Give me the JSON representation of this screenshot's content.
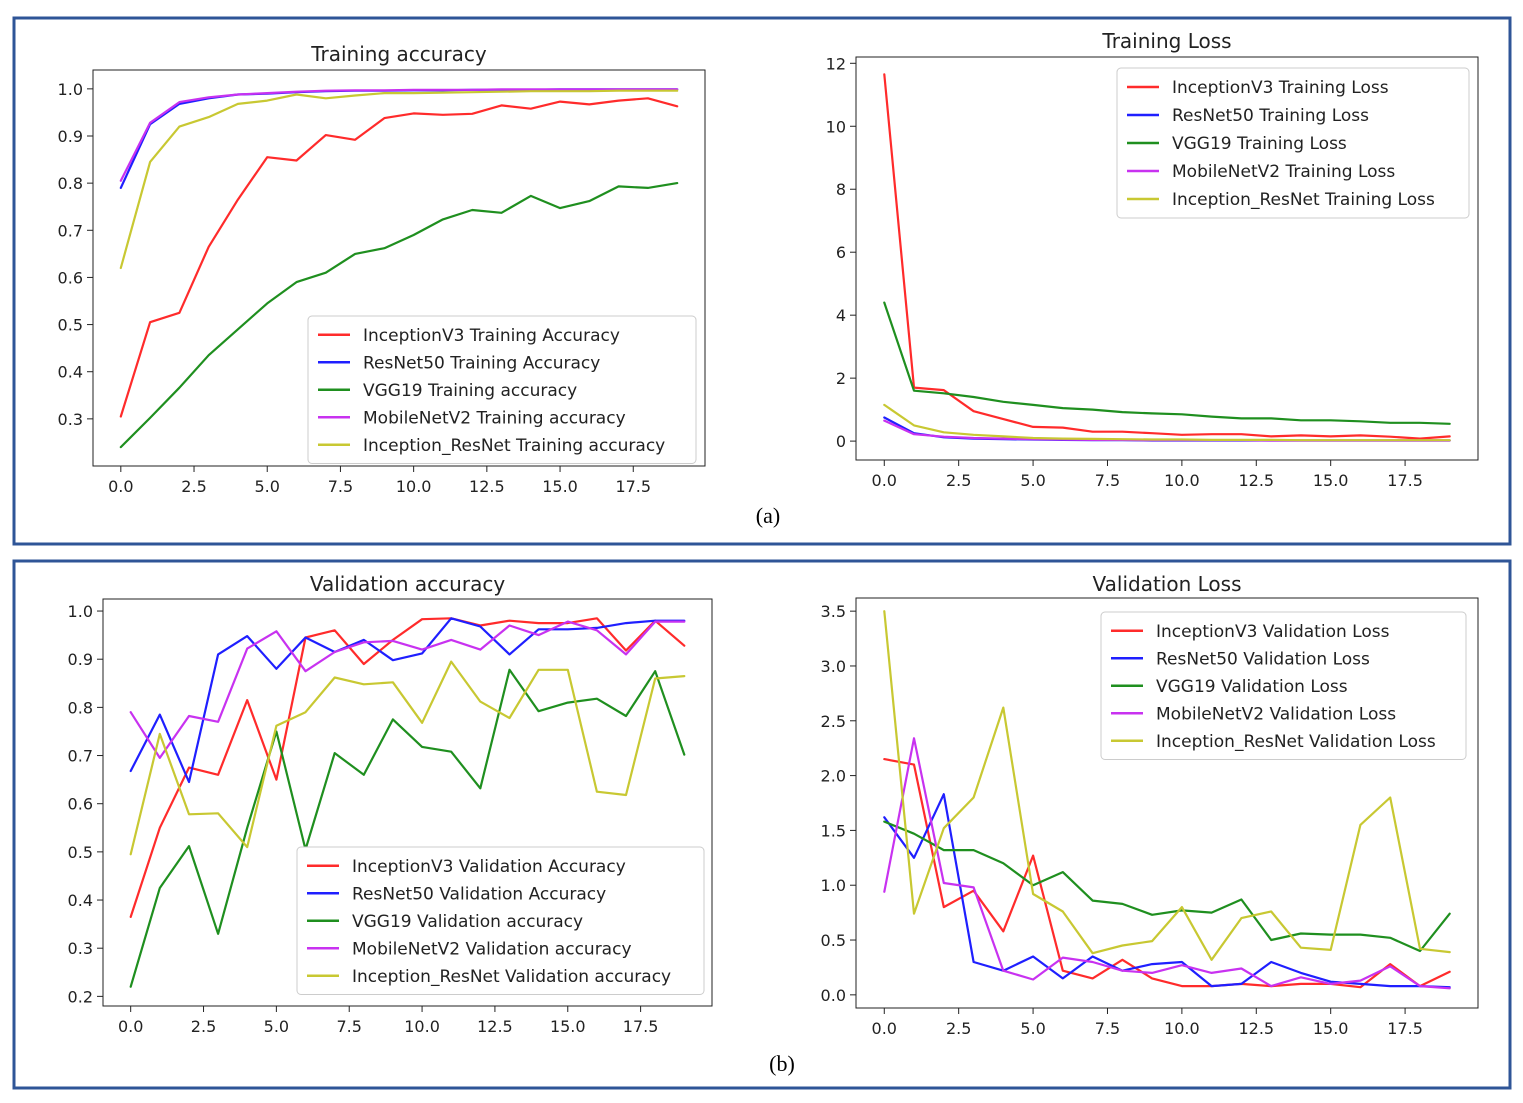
{
  "panels": [
    {
      "caption": "(a)"
    },
    {
      "caption": "(b)"
    }
  ],
  "chart_data": [
    {
      "type": "line",
      "title": "Training accuracy",
      "xlabel": "",
      "ylabel": "",
      "x": [
        0,
        1,
        2,
        3,
        4,
        5,
        6,
        7,
        8,
        9,
        10,
        11,
        12,
        13,
        14,
        15,
        16,
        17,
        18,
        19
      ],
      "xlim": [
        -0.95,
        19.95
      ],
      "ylim": [
        0.2,
        1.04
      ],
      "xticks": [
        "0.0",
        "2.5",
        "5.0",
        "7.5",
        "10.0",
        "12.5",
        "15.0",
        "17.5"
      ],
      "yticks": [
        "0.3",
        "0.4",
        "0.5",
        "0.6",
        "0.7",
        "0.8",
        "0.9",
        "1.0"
      ],
      "legend_position": "lower-right",
      "grid": false,
      "series": [
        {
          "name": "InceptionV3 Training Accuracy",
          "color": "#ff2b2b",
          "values": [
            0.305,
            0.505,
            0.525,
            0.665,
            0.765,
            0.855,
            0.848,
            0.902,
            0.892,
            0.938,
            0.948,
            0.945,
            0.947,
            0.965,
            0.958,
            0.973,
            0.967,
            0.975,
            0.98,
            0.963
          ]
        },
        {
          "name": "ResNet50 Training Accuracy",
          "color": "#1f1fff",
          "values": [
            0.79,
            0.925,
            0.968,
            0.98,
            0.988,
            0.99,
            0.993,
            0.995,
            0.996,
            0.996,
            0.997,
            0.997,
            0.998,
            0.998,
            0.998,
            0.999,
            0.999,
            0.999,
            0.999,
            0.999
          ]
        },
        {
          "name": "VGG19 Training accuracy",
          "color": "#1f8f1f",
          "values": [
            0.24,
            0.302,
            0.366,
            0.435,
            0.49,
            0.545,
            0.59,
            0.61,
            0.65,
            0.662,
            0.69,
            0.723,
            0.743,
            0.737,
            0.773,
            0.747,
            0.762,
            0.793,
            0.79,
            0.8
          ]
        },
        {
          "name": "MobileNetV2 Training accuracy",
          "color": "#c832f0",
          "values": [
            0.805,
            0.928,
            0.972,
            0.982,
            0.988,
            0.991,
            0.994,
            0.996,
            0.997,
            0.997,
            0.998,
            0.998,
            0.998,
            0.999,
            0.999,
            0.999,
            0.999,
            0.999,
            0.999,
            0.999
          ]
        },
        {
          "name": "Inception_ResNet Training accuracy",
          "color": "#c8c832",
          "values": [
            0.62,
            0.845,
            0.92,
            0.94,
            0.968,
            0.975,
            0.988,
            0.98,
            0.986,
            0.991,
            0.991,
            0.992,
            0.993,
            0.994,
            0.995,
            0.995,
            0.995,
            0.996,
            0.996,
            0.996
          ]
        }
      ]
    },
    {
      "type": "line",
      "title": "Training Loss",
      "xlabel": "",
      "ylabel": "",
      "x": [
        0,
        1,
        2,
        3,
        4,
        5,
        6,
        7,
        8,
        9,
        10,
        11,
        12,
        13,
        14,
        15,
        16,
        17,
        18,
        19
      ],
      "xlim": [
        -0.95,
        19.95
      ],
      "ylim": [
        -0.6,
        12.2
      ],
      "xticks": [
        "0.0",
        "2.5",
        "5.0",
        "7.5",
        "10.0",
        "12.5",
        "15.0",
        "17.5"
      ],
      "yticks": [
        "0",
        "2",
        "4",
        "6",
        "8",
        "10",
        "12"
      ],
      "legend_position": "upper-right",
      "grid": false,
      "series": [
        {
          "name": "InceptionV3 Training Loss",
          "color": "#ff2b2b",
          "values": [
            11.65,
            1.7,
            1.62,
            0.95,
            0.7,
            0.45,
            0.43,
            0.3,
            0.3,
            0.25,
            0.2,
            0.22,
            0.22,
            0.15,
            0.18,
            0.15,
            0.18,
            0.14,
            0.08,
            0.15
          ]
        },
        {
          "name": "ResNet50 Training Loss",
          "color": "#1f1fff",
          "values": [
            0.75,
            0.25,
            0.12,
            0.08,
            0.06,
            0.05,
            0.04,
            0.03,
            0.03,
            0.02,
            0.02,
            0.02,
            0.02,
            0.02,
            0.02,
            0.02,
            0.02,
            0.02,
            0.02,
            0.02
          ]
        },
        {
          "name": "VGG19 Training Loss",
          "color": "#1f8f1f",
          "values": [
            4.4,
            1.6,
            1.52,
            1.4,
            1.25,
            1.15,
            1.05,
            1.0,
            0.92,
            0.88,
            0.85,
            0.78,
            0.72,
            0.72,
            0.66,
            0.66,
            0.63,
            0.58,
            0.58,
            0.55
          ]
        },
        {
          "name": "MobileNetV2 Training Loss",
          "color": "#c832f0",
          "values": [
            0.65,
            0.22,
            0.14,
            0.1,
            0.08,
            0.06,
            0.05,
            0.04,
            0.04,
            0.03,
            0.03,
            0.03,
            0.03,
            0.02,
            0.02,
            0.02,
            0.02,
            0.02,
            0.02,
            0.02
          ]
        },
        {
          "name": "Inception_ResNet Training Loss",
          "color": "#c8c832",
          "values": [
            1.15,
            0.5,
            0.28,
            0.2,
            0.15,
            0.1,
            0.08,
            0.07,
            0.06,
            0.05,
            0.05,
            0.04,
            0.04,
            0.04,
            0.03,
            0.03,
            0.03,
            0.03,
            0.03,
            0.03
          ]
        }
      ]
    },
    {
      "type": "line",
      "title": "Validation accuracy",
      "xlabel": "",
      "ylabel": "",
      "x": [
        0,
        1,
        2,
        3,
        4,
        5,
        6,
        7,
        8,
        9,
        10,
        11,
        12,
        13,
        14,
        15,
        16,
        17,
        18,
        19
      ],
      "xlim": [
        -0.95,
        19.95
      ],
      "ylim": [
        0.18,
        1.025
      ],
      "xticks": [
        "0.0",
        "2.5",
        "5.0",
        "7.5",
        "10.0",
        "12.5",
        "15.0",
        "17.5"
      ],
      "yticks": [
        "0.2",
        "0.3",
        "0.4",
        "0.5",
        "0.6",
        "0.7",
        "0.8",
        "0.9",
        "1.0"
      ],
      "legend_position": "lower-right",
      "grid": false,
      "series": [
        {
          "name": "InceptionV3 Validation Accuracy",
          "color": "#ff2b2b",
          "values": [
            0.365,
            0.55,
            0.675,
            0.66,
            0.815,
            0.65,
            0.945,
            0.96,
            0.89,
            0.94,
            0.983,
            0.985,
            0.97,
            0.98,
            0.975,
            0.975,
            0.985,
            0.918,
            0.98,
            0.928
          ]
        },
        {
          "name": "ResNet50 Validation Accuracy",
          "color": "#1f1fff",
          "values": [
            0.668,
            0.785,
            0.645,
            0.91,
            0.948,
            0.88,
            0.945,
            0.915,
            0.94,
            0.898,
            0.912,
            0.985,
            0.968,
            0.91,
            0.962,
            0.962,
            0.965,
            0.975,
            0.98,
            0.98
          ]
        },
        {
          "name": "VGG19 Validation accuracy",
          "color": "#1f8f1f",
          "values": [
            0.22,
            0.425,
            0.512,
            0.33,
            0.55,
            0.75,
            0.505,
            0.705,
            0.66,
            0.775,
            0.718,
            0.708,
            0.632,
            0.878,
            0.792,
            0.81,
            0.818,
            0.782,
            0.875,
            0.702
          ]
        },
        {
          "name": "MobileNetV2 Validation accuracy",
          "color": "#c832f0",
          "values": [
            0.79,
            0.695,
            0.782,
            0.77,
            0.922,
            0.958,
            0.875,
            0.915,
            0.935,
            0.938,
            0.92,
            0.94,
            0.92,
            0.97,
            0.95,
            0.978,
            0.96,
            0.91,
            0.978,
            0.978
          ]
        },
        {
          "name": "Inception_ResNet Validation accuracy",
          "color": "#c8c832",
          "values": [
            0.495,
            0.745,
            0.578,
            0.58,
            0.51,
            0.762,
            0.79,
            0.862,
            0.848,
            0.852,
            0.768,
            0.895,
            0.812,
            0.778,
            0.878,
            0.878,
            0.625,
            0.618,
            0.86,
            0.865
          ]
        }
      ]
    },
    {
      "type": "line",
      "title": "Validation Loss",
      "xlabel": "",
      "ylabel": "",
      "x": [
        0,
        1,
        2,
        3,
        4,
        5,
        6,
        7,
        8,
        9,
        10,
        11,
        12,
        13,
        14,
        15,
        16,
        17,
        18,
        19
      ],
      "xlim": [
        -0.95,
        19.95
      ],
      "ylim": [
        -0.12,
        3.62
      ],
      "xticks": [
        "0.0",
        "2.5",
        "5.0",
        "7.5",
        "10.0",
        "12.5",
        "15.0",
        "17.5"
      ],
      "yticks": [
        "0.0",
        "0.5",
        "1.0",
        "1.5",
        "2.0",
        "2.5",
        "3.0",
        "3.5"
      ],
      "legend_position": "upper-right",
      "grid": false,
      "series": [
        {
          "name": "InceptionV3 Validation Loss",
          "color": "#ff2b2b",
          "values": [
            2.15,
            2.1,
            0.8,
            0.95,
            0.58,
            1.27,
            0.22,
            0.15,
            0.32,
            0.15,
            0.08,
            0.08,
            0.1,
            0.08,
            0.1,
            0.1,
            0.07,
            0.28,
            0.08,
            0.21
          ]
        },
        {
          "name": "ResNet50 Validation Loss",
          "color": "#1f1fff",
          "values": [
            1.62,
            1.25,
            1.83,
            0.3,
            0.22,
            0.35,
            0.15,
            0.35,
            0.22,
            0.28,
            0.3,
            0.08,
            0.1,
            0.3,
            0.2,
            0.12,
            0.1,
            0.08,
            0.08,
            0.07
          ]
        },
        {
          "name": "VGG19 Validation Loss",
          "color": "#1f8f1f",
          "values": [
            1.58,
            1.47,
            1.32,
            1.32,
            1.2,
            1.0,
            1.12,
            0.86,
            0.83,
            0.73,
            0.77,
            0.75,
            0.87,
            0.5,
            0.56,
            0.55,
            0.55,
            0.52,
            0.4,
            0.74
          ]
        },
        {
          "name": "MobileNetV2 Validation Loss",
          "color": "#c832f0",
          "values": [
            0.94,
            2.34,
            1.02,
            0.98,
            0.22,
            0.14,
            0.34,
            0.3,
            0.22,
            0.2,
            0.27,
            0.2,
            0.24,
            0.08,
            0.16,
            0.1,
            0.13,
            0.26,
            0.08,
            0.06
          ]
        },
        {
          "name": "Inception_ResNet Validation Loss",
          "color": "#c8c832",
          "values": [
            3.5,
            0.74,
            1.52,
            1.8,
            2.62,
            0.92,
            0.76,
            0.38,
            0.45,
            0.49,
            0.8,
            0.32,
            0.7,
            0.76,
            0.43,
            0.41,
            1.55,
            1.8,
            0.42,
            0.39
          ]
        }
      ]
    }
  ]
}
